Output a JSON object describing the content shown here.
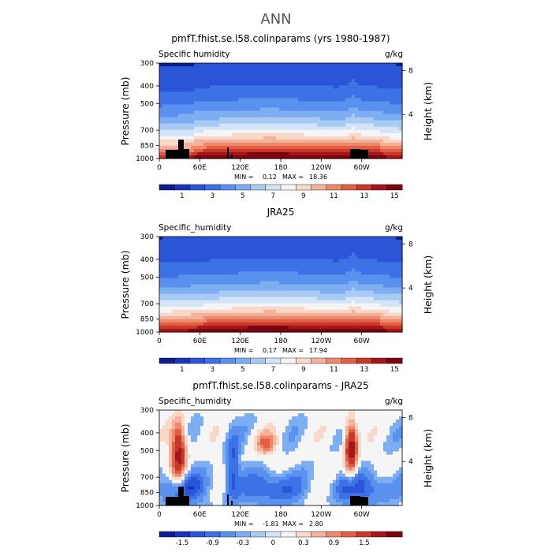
{
  "figure_title": "ANN",
  "colors": {
    "palette": [
      "#0a1f8f",
      "#1635b8",
      "#2a55d6",
      "#3c72e6",
      "#5a90ee",
      "#7eaef2",
      "#a8cbf4",
      "#d2e4f6",
      "#f5f5f5",
      "#f8d9c9",
      "#f4b29a",
      "#ee8a6c",
      "#e15f44",
      "#c8392a",
      "#a5161b",
      "#7a0510"
    ],
    "topography": "#000000"
  },
  "chart_data": [
    {
      "type": "heatmap",
      "title": "pmfT.fhist.se.l58.colinparams (yrs 1980-1987)",
      "variable_label": "Specific humidity",
      "units": "g/kg",
      "ylabel": "Pressure  (mb)",
      "ylabel_right": "Height  (km)",
      "pressure_ticks": [
        "300",
        "400",
        "500",
        "700",
        "850",
        "1000"
      ],
      "height_ticks": [
        "8",
        "4"
      ],
      "lon_ticks": [
        "0",
        "60E",
        "120E",
        "180",
        "120W",
        "60W"
      ],
      "min_label": "MIN =",
      "min_value": "0.12",
      "max_label": "MAX =",
      "max_value": "18.36",
      "colorbar_labels": [
        "1",
        "3",
        "5",
        "7",
        "9",
        "11",
        "13",
        "15"
      ]
    },
    {
      "type": "heatmap",
      "title": "JRA25",
      "variable_label": "Specific_humidity",
      "units": "g/kg",
      "ylabel": "Pressure  (mb)",
      "ylabel_right": "Height  (km)",
      "pressure_ticks": [
        "300",
        "400",
        "500",
        "700",
        "850",
        "1000"
      ],
      "height_ticks": [
        "8",
        "4"
      ],
      "lon_ticks": [
        "0",
        "60E",
        "120E",
        "180",
        "120W",
        "60W"
      ],
      "min_label": "MIN =",
      "min_value": "0.17",
      "max_label": "MAX =",
      "max_value": "17.94",
      "colorbar_labels": [
        "1",
        "3",
        "5",
        "7",
        "9",
        "11",
        "13",
        "15"
      ]
    },
    {
      "type": "heatmap",
      "title": "pmfT.fhist.se.l58.colinparams - JRA25",
      "variable_label": "Specific_humidity",
      "units": "g/kg",
      "ylabel": "Pressure  (mb)",
      "ylabel_right": "Height  (km)",
      "pressure_ticks": [
        "300",
        "400",
        "500",
        "700",
        "850",
        "1000"
      ],
      "height_ticks": [
        "8",
        "4"
      ],
      "lon_ticks": [
        "0",
        "60E",
        "120E",
        "180",
        "120W",
        "60W"
      ],
      "min_label": "MIN =",
      "min_value": "-1.81",
      "max_label": "MAX =",
      "max_value": "2.80",
      "colorbar_labels": [
        "-1.5",
        "-0.9",
        "-0.3",
        "0",
        "0.3",
        "0.9",
        "1.5"
      ]
    }
  ]
}
